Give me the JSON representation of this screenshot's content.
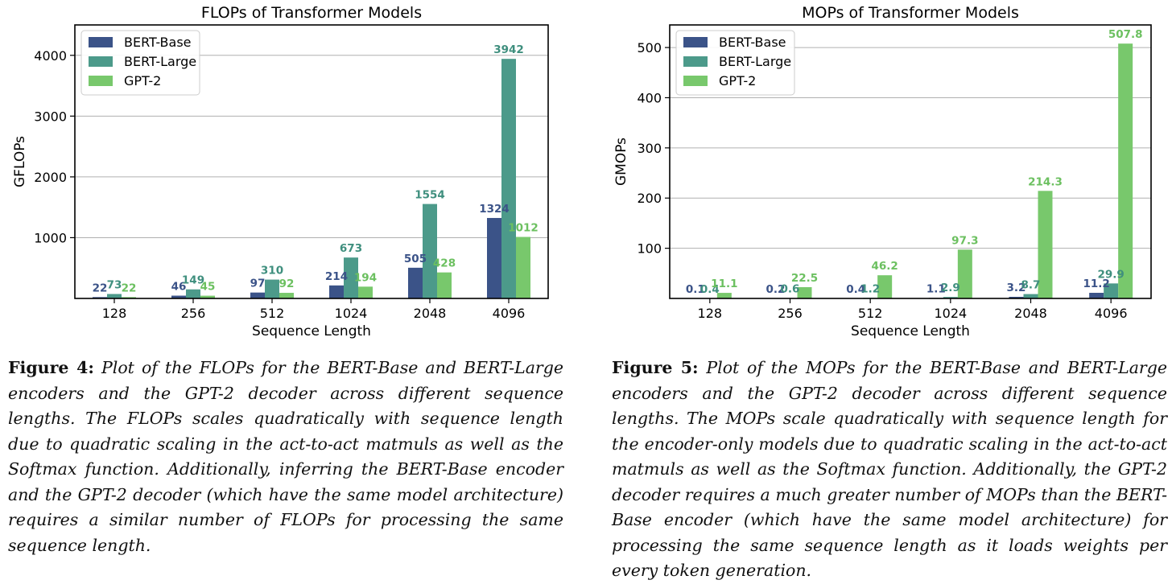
{
  "colors": {
    "BERT-Base": "#3b5388",
    "BERT-Large": "#4c9a8a",
    "GPT-2": "#78c86c"
  },
  "label_colors": {
    "BERT-Base": "#3b5388",
    "BERT-Large": "#3f8f7e",
    "GPT-2": "#6cc060"
  },
  "chart_data": [
    {
      "type": "bar",
      "title": "FLOPs of Transformer Models",
      "xlabel": "Sequence Length",
      "ylabel": "GFLOPs",
      "categories": [
        "128",
        "256",
        "512",
        "1024",
        "2048",
        "4096"
      ],
      "ylim": [
        0,
        4500
      ],
      "yticks": [
        1000,
        2000,
        3000,
        4000
      ],
      "grid": "y",
      "legend": "top-left",
      "series": [
        {
          "name": "BERT-Base",
          "values": [
            22,
            46,
            97,
            214,
            505,
            1324
          ],
          "labels": [
            "22",
            "46",
            "97",
            "214",
            "505",
            "1324"
          ]
        },
        {
          "name": "BERT-Large",
          "values": [
            73,
            149,
            310,
            673,
            1554,
            3942
          ],
          "labels": [
            "73",
            "149",
            "310",
            "673",
            "1554",
            "3942"
          ]
        },
        {
          "name": "GPT-2",
          "values": [
            22,
            45,
            92,
            194,
            428,
            1012
          ],
          "labels": [
            "22",
            "45",
            "92",
            "194",
            "428",
            "1012"
          ]
        }
      ]
    },
    {
      "type": "bar",
      "title": "MOPs of Transformer Models",
      "xlabel": "Sequence Length",
      "ylabel": "GMOPs",
      "categories": [
        "128",
        "256",
        "512",
        "1024",
        "2048",
        "4096"
      ],
      "ylim": [
        0,
        545
      ],
      "yticks": [
        100,
        200,
        300,
        400,
        500
      ],
      "grid": "y",
      "legend": "top-left",
      "series": [
        {
          "name": "BERT-Base",
          "values": [
            0.1,
            0.2,
            0.4,
            1.1,
            3.2,
            11.2
          ],
          "labels": [
            "0.1",
            "0.2",
            "0.4",
            "1.1",
            "3.2",
            "11.2"
          ]
        },
        {
          "name": "BERT-Large",
          "values": [
            0.4,
            0.6,
            1.2,
            2.9,
            8.7,
            29.9
          ],
          "labels": [
            "0.4",
            "0.6",
            "1.2",
            "2.9",
            "8.7",
            "29.9"
          ]
        },
        {
          "name": "GPT-2",
          "values": [
            11.1,
            22.5,
            46.2,
            97.3,
            214.3,
            507.8
          ],
          "labels": [
            "11.1",
            "22.5",
            "46.2",
            "97.3",
            "214.3",
            "507.8"
          ]
        }
      ]
    }
  ],
  "captions": [
    {
      "label": "Figure 4:",
      "text": "Plot of the FLOPs for the BERT-Base and BERT-Large encoders and the GPT-2 decoder across different sequence lengths. The FLOPs scales quadratically with sequence length due to quadratic scaling in the act-to-act matmuls as well as the Softmax function. Additionally, inferring the BERT-Base encoder and the GPT-2 decoder (which have the same model architecture) requires a similar number of FLOPs for processing the same sequence length."
    },
    {
      "label": "Figure 5:",
      "text": "Plot of the MOPs for the BERT-Base and BERT-Large encoders and the GPT-2 decoder across different sequence lengths. The MOPs scale quadratically with sequence length for the encoder-only models due to quadratic scaling in the act-to-act matmuls as well as the Softmax function. Additionally, the GPT-2 decoder requires a much greater number of MOPs than the BERT-Base encoder (which have the same model architecture) for processing the same sequence length as it loads weights per every token generation."
    }
  ]
}
